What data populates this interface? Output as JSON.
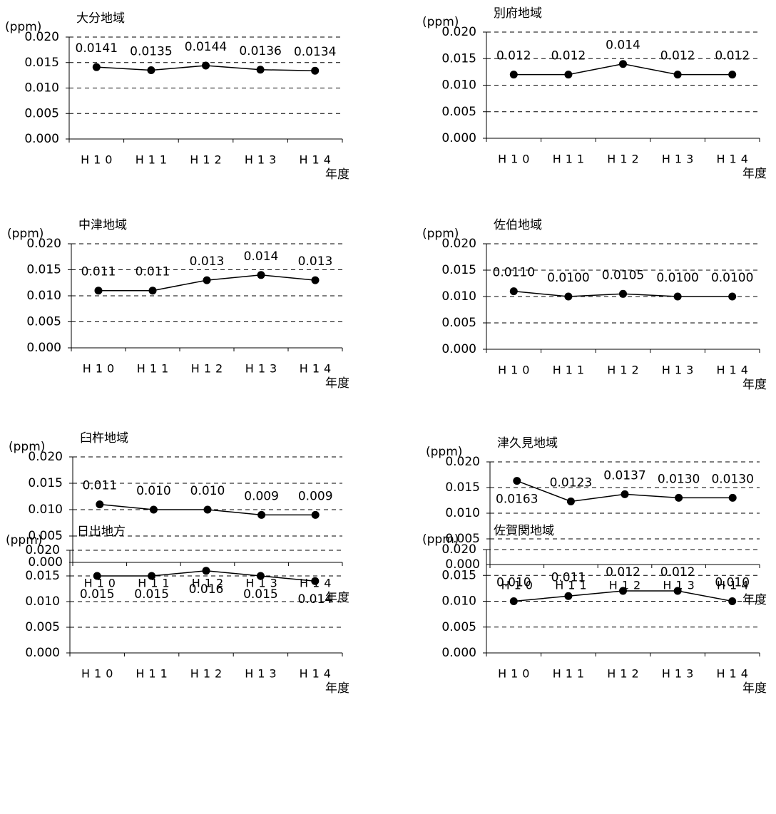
{
  "chart_data": [
    {
      "type": "line",
      "title": "大分地域",
      "y_label": "(ppm)",
      "x_label": "年度",
      "categories": [
        "H10",
        "H11",
        "H12",
        "H13",
        "H14"
      ],
      "values": [
        0.0141,
        0.0135,
        0.0144,
        0.0136,
        0.0134
      ],
      "value_labels": [
        "0.0141",
        "0.0135",
        "0.0144",
        "0.0136",
        "0.0134"
      ],
      "color": "#000000",
      "ylim": [
        0,
        0.02
      ],
      "yticks": [
        {
          "value": 0,
          "label": "0.000"
        },
        {
          "value": 0.005,
          "label": "0.005"
        },
        {
          "value": 0.01,
          "label": "0.010"
        },
        {
          "value": 0.015,
          "label": "0.015"
        },
        {
          "value": 0.02,
          "label": "0.020"
        }
      ],
      "grid": true
    },
    {
      "type": "line",
      "title": "別府地域",
      "y_label": "(ppm)",
      "x_label": "年度",
      "categories": [
        "H10",
        "H11",
        "H12",
        "H13",
        "H14"
      ],
      "values": [
        0.012,
        0.012,
        0.014,
        0.012,
        0.012
      ],
      "value_labels": [
        "0.012",
        "0.012",
        "0.014",
        "0.012",
        "0.012"
      ],
      "color": "#000000",
      "ylim": [
        0,
        0.02
      ],
      "yticks": [
        {
          "value": 0,
          "label": "0.000"
        },
        {
          "value": 0.005,
          "label": "0.005"
        },
        {
          "value": 0.01,
          "label": "0.010"
        },
        {
          "value": 0.015,
          "label": "0.015"
        },
        {
          "value": 0.02,
          "label": "0.020"
        }
      ],
      "grid": true
    },
    {
      "type": "line",
      "title": "中津地域",
      "y_label": "(ppm)",
      "x_label": "年度",
      "categories": [
        "H10",
        "H11",
        "H12",
        "H13",
        "H14"
      ],
      "values": [
        0.011,
        0.011,
        0.013,
        0.014,
        0.013
      ],
      "value_labels": [
        "0.011",
        "0.011",
        "0.013",
        "0.014",
        "0.013"
      ],
      "color": "#000000",
      "ylim": [
        0,
        0.02
      ],
      "yticks": [
        {
          "value": 0,
          "label": "0.000"
        },
        {
          "value": 0.005,
          "label": "0.005"
        },
        {
          "value": 0.01,
          "label": "0.010"
        },
        {
          "value": 0.015,
          "label": "0.015"
        },
        {
          "value": 0.02,
          "label": "0.020"
        }
      ],
      "grid": true
    },
    {
      "type": "line",
      "title": "佐伯地域",
      "y_label": "(ppm)",
      "x_label": "年度",
      "categories": [
        "H10",
        "H11",
        "H12",
        "H13",
        "H14"
      ],
      "values": [
        0.011,
        0.01,
        0.0105,
        0.01,
        0.01
      ],
      "value_labels": [
        "0.0110",
        "0.0100",
        "0.0105",
        "0.0100",
        "0.0100"
      ],
      "color": "#000000",
      "ylim": [
        0,
        0.02
      ],
      "yticks": [
        {
          "value": 0,
          "label": "0.000"
        },
        {
          "value": 0.005,
          "label": "0.005"
        },
        {
          "value": 0.01,
          "label": "0.010"
        },
        {
          "value": 0.015,
          "label": "0.015"
        },
        {
          "value": 0.02,
          "label": "0.020"
        }
      ],
      "grid": true
    },
    {
      "type": "line",
      "title": "臼杵地域",
      "y_label": "(ppm)",
      "x_label": "年度",
      "categories": [
        "H10",
        "H11",
        "H12",
        "H13",
        "H14"
      ],
      "values": [
        0.011,
        0.01,
        0.01,
        0.009,
        0.009
      ],
      "value_labels": [
        "0.011",
        "0.010",
        "0.010",
        "0.009",
        "0.009"
      ],
      "color": "#000000",
      "ylim": [
        0,
        0.02
      ],
      "yticks": [
        {
          "value": 0,
          "label": "0.000"
        },
        {
          "value": 0.005,
          "label": "0.005"
        },
        {
          "value": 0.01,
          "label": "0.010"
        },
        {
          "value": 0.015,
          "label": "0.015"
        },
        {
          "value": 0.02,
          "label": "0.020"
        }
      ],
      "grid": true
    },
    {
      "type": "line",
      "title": "津久見地域",
      "y_label": "(ppm)",
      "x_label": "年度",
      "categories": [
        "H10",
        "H11",
        "H12",
        "H13",
        "H14"
      ],
      "values": [
        0.0163,
        0.0123,
        0.0137,
        0.013,
        0.013
      ],
      "value_labels": [
        "0.0163",
        "0.0123",
        "0.0137",
        "0.0130",
        "0.0130"
      ],
      "color": "#000000",
      "ylim": [
        0,
        0.02
      ],
      "yticks": [
        {
          "value": 0,
          "label": "0.000"
        },
        {
          "value": 0.005,
          "label": "0.005"
        },
        {
          "value": 0.01,
          "label": "0.010"
        },
        {
          "value": 0.015,
          "label": "0.015"
        },
        {
          "value": 0.02,
          "label": "0.020"
        }
      ],
      "grid": true
    },
    {
      "type": "line",
      "title": "日出地方",
      "y_label": "(ppm)",
      "x_label": "年度",
      "categories": [
        "H10",
        "H11",
        "H12",
        "H13",
        "H14"
      ],
      "values": [
        0.015,
        0.015,
        0.016,
        0.015,
        0.014
      ],
      "value_labels": [
        "0.015",
        "0.015",
        "0.016",
        "0.015",
        "0.014"
      ],
      "color": "#000000",
      "ylim": [
        0,
        0.02
      ],
      "yticks": [
        {
          "value": 0,
          "label": "0.000"
        },
        {
          "value": 0.005,
          "label": "0.005"
        },
        {
          "value": 0.01,
          "label": "0.010"
        },
        {
          "value": 0.015,
          "label": "0.015"
        },
        {
          "value": 0.02,
          "label": "0.020"
        }
      ],
      "grid": true
    },
    {
      "type": "line",
      "title": "佐賀関地域",
      "y_label": "(ppm)",
      "x_label": "年度",
      "categories": [
        "H10",
        "H11",
        "H12",
        "H13",
        "H14"
      ],
      "values": [
        0.01,
        0.011,
        0.012,
        0.012,
        0.01
      ],
      "value_labels": [
        "0.010",
        "0.011",
        "0.012",
        "0.012",
        "0.010"
      ],
      "color": "#000000",
      "ylim": [
        0,
        0.02
      ],
      "yticks": [
        {
          "value": 0,
          "label": "0.000"
        },
        {
          "value": 0.005,
          "label": "0.005"
        },
        {
          "value": 0.01,
          "label": "0.010"
        },
        {
          "value": 0.015,
          "label": "0.015"
        },
        {
          "value": 0.02,
          "label": "0.020"
        }
      ],
      "grid": true
    }
  ]
}
